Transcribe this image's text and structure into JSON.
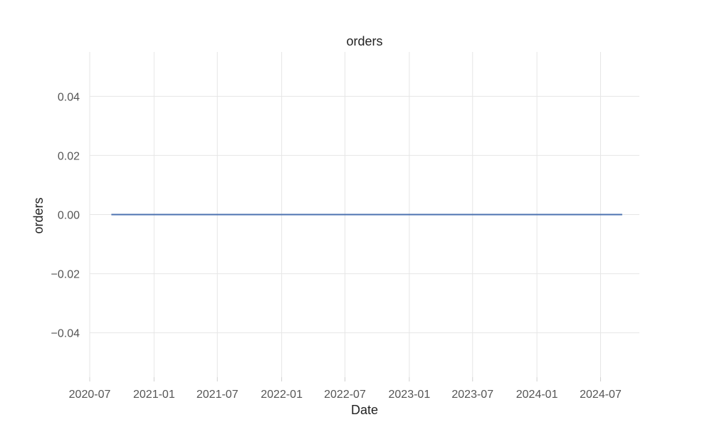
{
  "chart_data": {
    "type": "line",
    "title": "orders",
    "xlabel": "Date",
    "ylabel": "orders",
    "x_ticks": [
      "2020-07",
      "2021-01",
      "2021-07",
      "2022-01",
      "2022-07",
      "2023-01",
      "2023-07",
      "2024-01",
      "2024-07"
    ],
    "y_ticks": [
      -0.04,
      -0.02,
      0.0,
      0.02,
      0.04
    ],
    "y_tick_labels": [
      "−0.04",
      "−0.02",
      "0.00",
      "0.02",
      "0.04"
    ],
    "xlim": [
      "2020-07-01",
      "2024-10-20"
    ],
    "ylim": [
      -0.055,
      0.055
    ],
    "grid": true,
    "series": [
      {
        "color": "#4c72b0",
        "x": [
          "2020-09-01",
          "2024-09-01"
        ],
        "y": [
          0,
          0
        ]
      }
    ]
  }
}
